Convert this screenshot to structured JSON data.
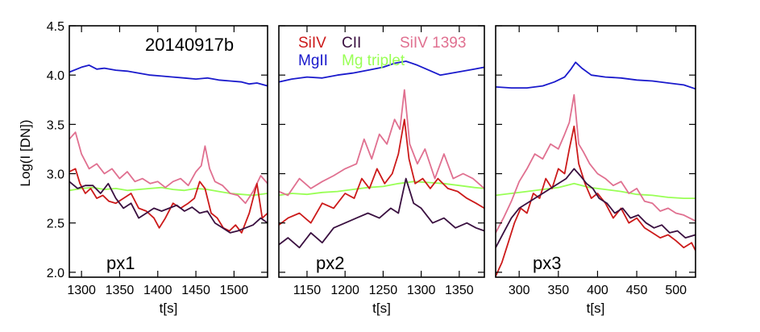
{
  "figure": {
    "ylabel": "Log(I [DN])",
    "ylim": [
      1.95,
      4.5
    ],
    "yticks": [
      2.0,
      2.5,
      3.0,
      3.5,
      4.0,
      4.5
    ],
    "ytick_labels": [
      "2.0",
      "2.5",
      "3.0",
      "3.5",
      "4.0",
      "4.5"
    ],
    "event_label": "20140917b"
  },
  "legend": {
    "entries": [
      {
        "name": "SiIV",
        "color": "#cc1a1a"
      },
      {
        "name": "CII",
        "color": "#3a1040"
      },
      {
        "name": "SiIV 1393",
        "color": "#e07090"
      },
      {
        "name": "MgII",
        "color": "#1a1acc"
      },
      {
        "name": "Mg triplet",
        "color": "#99ff55"
      }
    ]
  },
  "chart_data": [
    {
      "type": "line",
      "panel_label": "px1",
      "xlabel": "t[s]",
      "xlim": [
        1284,
        1544
      ],
      "xticks": [
        1300,
        1350,
        1400,
        1450,
        1500
      ],
      "xtick_labels": [
        "1300",
        "1350",
        "1400",
        "1450",
        "1500"
      ],
      "ylim": [
        1.95,
        4.5
      ],
      "series": [
        {
          "name": "MgII",
          "color": "#1a1acc",
          "x": [
            1284,
            1300,
            1310,
            1320,
            1330,
            1345,
            1360,
            1375,
            1390,
            1405,
            1420,
            1435,
            1450,
            1465,
            1480,
            1495,
            1510,
            1520,
            1530,
            1544
          ],
          "y": [
            4.03,
            4.08,
            4.1,
            4.06,
            4.07,
            4.05,
            4.04,
            4.02,
            4.0,
            3.99,
            3.98,
            3.97,
            3.96,
            3.97,
            3.95,
            3.94,
            3.93,
            3.91,
            3.92,
            3.89
          ]
        },
        {
          "name": "Mg triplet",
          "color": "#99ff55",
          "x": [
            1284,
            1300,
            1315,
            1330,
            1345,
            1360,
            1375,
            1390,
            1405,
            1420,
            1435,
            1450,
            1465,
            1480,
            1495,
            1510,
            1525,
            1544
          ],
          "y": [
            2.83,
            2.85,
            2.86,
            2.84,
            2.85,
            2.83,
            2.84,
            2.85,
            2.86,
            2.84,
            2.83,
            2.85,
            2.84,
            2.82,
            2.8,
            2.79,
            2.78,
            2.8
          ]
        },
        {
          "name": "SiIV 1393",
          "color": "#e07090",
          "x": [
            1284,
            1292,
            1300,
            1310,
            1320,
            1330,
            1340,
            1350,
            1360,
            1370,
            1380,
            1390,
            1400,
            1410,
            1420,
            1430,
            1440,
            1450,
            1457,
            1462,
            1468,
            1475,
            1485,
            1495,
            1505,
            1515,
            1525,
            1535,
            1544
          ],
          "y": [
            3.35,
            3.42,
            3.2,
            3.05,
            3.1,
            3.0,
            3.05,
            2.95,
            3.02,
            2.92,
            2.95,
            2.9,
            2.92,
            2.86,
            2.92,
            2.95,
            2.88,
            3.02,
            3.08,
            3.28,
            3.05,
            2.92,
            2.88,
            2.8,
            2.78,
            2.7,
            2.82,
            2.98,
            2.9
          ]
        },
        {
          "name": "SiIV",
          "color": "#cc1a1a",
          "x": [
            1284,
            1292,
            1298,
            1305,
            1312,
            1320,
            1328,
            1336,
            1345,
            1355,
            1365,
            1375,
            1385,
            1395,
            1402,
            1410,
            1420,
            1430,
            1440,
            1448,
            1455,
            1462,
            1470,
            1478,
            1486,
            1494,
            1502,
            1510,
            1520,
            1530,
            1537,
            1544
          ],
          "y": [
            3.02,
            3.05,
            2.9,
            2.8,
            2.85,
            2.75,
            2.78,
            2.72,
            2.7,
            2.75,
            2.8,
            2.65,
            2.62,
            2.55,
            2.45,
            2.55,
            2.7,
            2.65,
            2.7,
            2.75,
            2.92,
            2.85,
            2.6,
            2.55,
            2.45,
            2.42,
            2.48,
            2.4,
            2.6,
            2.9,
            2.55,
            2.6
          ]
        },
        {
          "name": "CII",
          "color": "#3a1040",
          "x": [
            1284,
            1295,
            1305,
            1315,
            1325,
            1335,
            1345,
            1355,
            1365,
            1375,
            1385,
            1395,
            1405,
            1415,
            1425,
            1435,
            1445,
            1455,
            1465,
            1475,
            1485,
            1495,
            1505,
            1515,
            1525,
            1535,
            1544
          ],
          "y": [
            2.92,
            2.85,
            2.88,
            2.88,
            2.8,
            2.9,
            2.75,
            2.65,
            2.7,
            2.55,
            2.6,
            2.65,
            2.62,
            2.65,
            2.68,
            2.62,
            2.66,
            2.6,
            2.62,
            2.5,
            2.45,
            2.4,
            2.42,
            2.45,
            2.48,
            2.55,
            2.5
          ]
        }
      ]
    },
    {
      "type": "line",
      "panel_label": "px2",
      "xlabel": "t[s]",
      "xlim": [
        1113,
        1383
      ],
      "xticks": [
        1150,
        1200,
        1250,
        1300,
        1350
      ],
      "xtick_labels": [
        "1150",
        "1200",
        "1250",
        "1300",
        "1350"
      ],
      "ylim": [
        1.95,
        4.5
      ],
      "series": [
        {
          "name": "MgII",
          "color": "#1a1acc",
          "x": [
            1113,
            1130,
            1150,
            1170,
            1190,
            1210,
            1230,
            1250,
            1265,
            1280,
            1295,
            1310,
            1325,
            1340,
            1355,
            1370,
            1383
          ],
          "y": [
            3.93,
            3.96,
            3.98,
            3.97,
            4.0,
            4.02,
            4.05,
            4.08,
            4.12,
            4.14,
            4.1,
            4.05,
            4.0,
            4.02,
            4.04,
            4.06,
            4.08
          ]
        },
        {
          "name": "Mg triplet",
          "color": "#99ff55",
          "x": [
            1113,
            1130,
            1150,
            1170,
            1190,
            1210,
            1230,
            1250,
            1270,
            1290,
            1310,
            1330,
            1350,
            1370,
            1383
          ],
          "y": [
            2.78,
            2.8,
            2.79,
            2.81,
            2.82,
            2.84,
            2.86,
            2.87,
            2.9,
            2.92,
            2.91,
            2.9,
            2.88,
            2.86,
            2.85
          ]
        },
        {
          "name": "SiIV 1393",
          "color": "#e07090",
          "x": [
            1113,
            1125,
            1140,
            1155,
            1170,
            1185,
            1200,
            1215,
            1225,
            1235,
            1245,
            1255,
            1265,
            1272,
            1278,
            1285,
            1295,
            1305,
            1318,
            1330,
            1342,
            1355,
            1368,
            1383
          ],
          "y": [
            2.82,
            2.78,
            2.95,
            2.85,
            2.92,
            2.98,
            3.05,
            3.1,
            3.35,
            3.15,
            3.4,
            3.3,
            3.55,
            3.45,
            3.85,
            3.3,
            3.1,
            3.25,
            2.95,
            3.2,
            2.95,
            3.0,
            2.95,
            2.85
          ]
        },
        {
          "name": "SiIV",
          "color": "#cc1a1a",
          "x": [
            1113,
            1125,
            1140,
            1155,
            1170,
            1185,
            1200,
            1212,
            1222,
            1232,
            1242,
            1252,
            1262,
            1270,
            1278,
            1284,
            1292,
            1302,
            1312,
            1322,
            1335,
            1348,
            1360,
            1372,
            1383
          ],
          "y": [
            2.48,
            2.55,
            2.6,
            2.5,
            2.7,
            2.65,
            2.8,
            2.75,
            2.95,
            2.85,
            3.05,
            2.9,
            3.0,
            3.2,
            3.55,
            3.15,
            2.9,
            2.95,
            2.85,
            2.95,
            2.85,
            2.82,
            2.75,
            2.7,
            2.65
          ]
        },
        {
          "name": "CII",
          "color": "#3a1040",
          "x": [
            1113,
            1125,
            1140,
            1155,
            1170,
            1185,
            1200,
            1215,
            1230,
            1245,
            1260,
            1270,
            1280,
            1290,
            1300,
            1315,
            1330,
            1345,
            1360,
            1372,
            1383
          ],
          "y": [
            2.28,
            2.35,
            2.25,
            2.4,
            2.3,
            2.45,
            2.5,
            2.55,
            2.6,
            2.55,
            2.65,
            2.6,
            2.95,
            2.7,
            2.65,
            2.5,
            2.55,
            2.45,
            2.5,
            2.45,
            2.42
          ]
        }
      ]
    },
    {
      "type": "line",
      "panel_label": "px3",
      "xlabel": "t[s]",
      "xlim": [
        270,
        525
      ],
      "xticks": [
        300,
        350,
        400,
        450,
        500
      ],
      "xtick_labels": [
        "300",
        "350",
        "400",
        "450",
        "500"
      ],
      "ylim": [
        1.95,
        4.5
      ],
      "series": [
        {
          "name": "MgII",
          "color": "#1a1acc",
          "x": [
            270,
            290,
            310,
            330,
            345,
            358,
            366,
            372,
            380,
            392,
            410,
            430,
            450,
            470,
            490,
            510,
            525
          ],
          "y": [
            3.88,
            3.87,
            3.87,
            3.89,
            3.93,
            3.98,
            4.06,
            4.13,
            4.07,
            4.0,
            3.98,
            3.97,
            3.95,
            3.94,
            3.92,
            3.9,
            3.86
          ]
        },
        {
          "name": "Mg triplet",
          "color": "#99ff55",
          "x": [
            270,
            290,
            310,
            330,
            350,
            370,
            390,
            410,
            430,
            450,
            470,
            490,
            510,
            525
          ],
          "y": [
            2.78,
            2.8,
            2.82,
            2.84,
            2.86,
            2.9,
            2.86,
            2.84,
            2.82,
            2.79,
            2.78,
            2.76,
            2.75,
            2.75
          ]
        },
        {
          "name": "SiIV 1393",
          "color": "#e07090",
          "x": [
            270,
            280,
            290,
            300,
            310,
            320,
            330,
            340,
            350,
            358,
            364,
            370,
            376,
            382,
            390,
            400,
            410,
            420,
            430,
            440,
            450,
            460,
            470,
            480,
            490,
            500,
            510,
            525
          ],
          "y": [
            2.4,
            2.55,
            2.72,
            2.92,
            3.05,
            3.2,
            3.15,
            3.3,
            3.25,
            3.4,
            3.52,
            3.8,
            3.3,
            3.22,
            3.1,
            3.0,
            2.95,
            2.88,
            2.92,
            2.8,
            2.85,
            2.72,
            2.7,
            2.62,
            2.65,
            2.6,
            2.58,
            2.52
          ]
        },
        {
          "name": "SiIV",
          "color": "#cc1a1a",
          "x": [
            270,
            278,
            286,
            294,
            302,
            310,
            318,
            326,
            334,
            342,
            350,
            358,
            364,
            370,
            376,
            384,
            392,
            400,
            410,
            420,
            430,
            440,
            450,
            460,
            470,
            480,
            490,
            500,
            510,
            520,
            525
          ],
          "y": [
            1.96,
            2.1,
            2.3,
            2.5,
            2.65,
            2.6,
            2.8,
            2.75,
            2.95,
            2.85,
            3.05,
            3.0,
            3.25,
            3.48,
            3.1,
            2.9,
            2.75,
            2.8,
            2.7,
            2.55,
            2.65,
            2.5,
            2.55,
            2.45,
            2.4,
            2.35,
            2.38,
            2.32,
            2.25,
            2.3,
            2.22
          ]
        },
        {
          "name": "CII",
          "color": "#3a1040",
          "x": [
            270,
            280,
            290,
            300,
            310,
            320,
            330,
            340,
            350,
            360,
            370,
            378,
            386,
            394,
            402,
            412,
            422,
            432,
            442,
            452,
            462,
            472,
            482,
            492,
            502,
            512,
            525
          ],
          "y": [
            2.25,
            2.4,
            2.55,
            2.65,
            2.7,
            2.75,
            2.8,
            2.85,
            2.9,
            2.95,
            3.05,
            2.98,
            2.9,
            2.85,
            2.75,
            2.7,
            2.6,
            2.65,
            2.55,
            2.58,
            2.5,
            2.45,
            2.48,
            2.4,
            2.42,
            2.35,
            2.38
          ]
        }
      ]
    }
  ]
}
